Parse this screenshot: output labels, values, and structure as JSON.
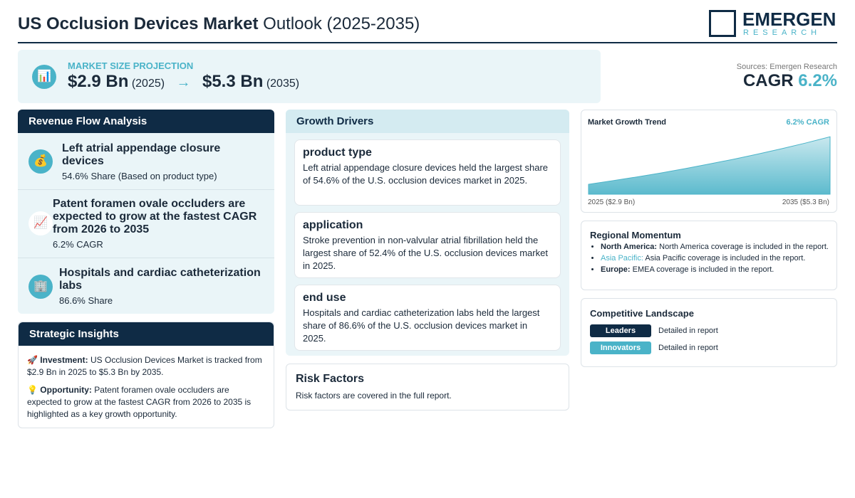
{
  "header": {
    "title_bold": "US Occlusion Devices Market",
    "title_rest": "Outlook (2025-2035)",
    "logo_main": "EMERGEN",
    "logo_sub": "RESEARCH"
  },
  "projection": {
    "label": "MARKET SIZE PROJECTION",
    "start_value": "$2.9 Bn",
    "start_year": "(2025)",
    "arrow": "→",
    "end_value": "$5.3 Bn",
    "end_year": "(2035)"
  },
  "sources": "Sources: Emergen Research",
  "cagr": {
    "label": "CAGR",
    "value": "6.2%"
  },
  "revenue_flow": {
    "title": "Revenue Flow Analysis",
    "items": [
      {
        "title": "Left atrial appendage closure devices",
        "detail": "54.6% Share (Based on product type)"
      },
      {
        "title": "Patent foramen ovale occluders are expected to grow at the fastest CAGR from 2026 to 2035",
        "detail": "6.2% CAGR"
      },
      {
        "title": "Hospitals and cardiac catheterization labs",
        "detail": "86.6% Share"
      }
    ]
  },
  "insights": {
    "title": "Strategic Insights",
    "items": [
      {
        "label": "Investment:",
        "text": "US Occlusion Devices Market is tracked from $2.9 Bn in 2025 to $5.3 Bn by 2035."
      },
      {
        "label": "Opportunity:",
        "text": "Patent foramen ovale occluders are expected to grow at the fastest CAGR from 2026 to 2035 is highlighted as a key growth opportunity."
      }
    ]
  },
  "growth_drivers": {
    "title": "Growth Drivers",
    "items": [
      {
        "heading": "product type",
        "text": "Left atrial appendage closure devices held the largest share of 54.6% of the U.S. occlusion devices market in 2025."
      },
      {
        "heading": "application",
        "text": "Stroke prevention in non-valvular atrial fibrillation held the largest share of 52.4% of the U.S. occlusion devices market in 2025."
      },
      {
        "heading": "end use",
        "text": "Hospitals and cardiac catheterization labs held the largest share of 86.6% of the U.S. occlusion devices market in 2025."
      }
    ]
  },
  "risk": {
    "title": "Risk Factors",
    "text": "Risk factors are covered in the full report."
  },
  "chart_data": {
    "type": "area",
    "title": "Market Growth Trend",
    "subtitle": "6.2% CAGR",
    "x": [
      2025,
      2026,
      2027,
      2028,
      2029,
      2030,
      2031,
      2032,
      2033,
      2034,
      2035
    ],
    "values": [
      2.9,
      3.08,
      3.27,
      3.47,
      3.69,
      3.92,
      4.16,
      4.42,
      4.69,
      4.98,
      5.29
    ],
    "xlim": [
      2025,
      2035
    ],
    "ylim": [
      2.4,
      5.3
    ],
    "color": "#4ab3c8",
    "start_label": "2025 ($2.9 Bn)",
    "end_label": "2035 ($5.3 Bn)"
  },
  "regional": {
    "title": "Regional Momentum",
    "items": [
      {
        "region": "North America:",
        "text": "North America coverage is included in the report."
      },
      {
        "region": "Asia Pacific:",
        "text": "Asia Pacific coverage is included in the report."
      },
      {
        "region": "Europe:",
        "text": "EMEA coverage is included in the report."
      }
    ]
  },
  "competitive": {
    "title": "Competitive Landscape",
    "items": [
      {
        "badge": "Leaders",
        "text": "Detailed in report"
      },
      {
        "badge": "Innovators",
        "text": "Detailed in report"
      }
    ]
  }
}
